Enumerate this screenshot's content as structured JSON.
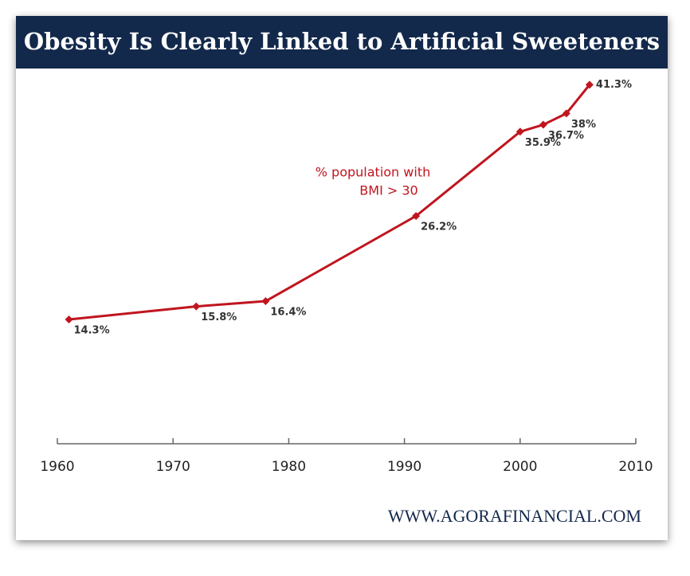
{
  "chart_data": {
    "type": "line",
    "title": "Obesity Is Clearly Linked to Artificial Sweeteners",
    "annotation": [
      "% population with",
      "BMI > 30"
    ],
    "source": "WWW.AGORAFINANCIAL.COM",
    "x": [
      1961,
      1972,
      1978,
      1991,
      2000,
      2002,
      2004,
      2006
    ],
    "series": [
      {
        "name": "% population with BMI > 30",
        "color": "#c0151e",
        "values": [
          14.3,
          15.8,
          16.4,
          26.2,
          35.9,
          36.7,
          38,
          41.3
        ],
        "value_labels": [
          "14.3%",
          "15.8%",
          "16.4%",
          "26.2%",
          "35.9%",
          "36.7%",
          "38%",
          "41.3%"
        ]
      }
    ],
    "xlim": [
      1960,
      2010
    ],
    "xticks": [
      1960,
      1970,
      1980,
      1990,
      2000,
      2010
    ],
    "ylim": [
      0,
      45
    ]
  }
}
